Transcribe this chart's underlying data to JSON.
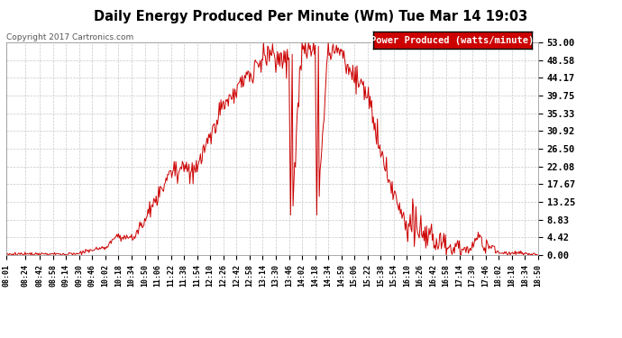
{
  "title": "Daily Energy Produced Per Minute (Wm) Tue Mar 14 19:03",
  "copyright": "Copyright 2017 Cartronics.com",
  "legend_label": "Power Produced (watts/minute)",
  "legend_bg": "#cc0000",
  "legend_fg": "#ffffff",
  "line_color": "#cc0000",
  "bg_color": "#ffffff",
  "grid_color": "#c8c8c8",
  "title_color": "#000000",
  "ymax": 53.0,
  "ymin": 0.0,
  "yticks": [
    0.0,
    4.42,
    8.83,
    13.25,
    17.67,
    22.08,
    26.5,
    30.92,
    35.33,
    39.75,
    44.17,
    48.58,
    53.0
  ],
  "xtick_labels": [
    "08:01",
    "08:24",
    "08:42",
    "08:58",
    "09:14",
    "09:30",
    "09:46",
    "10:02",
    "10:18",
    "10:34",
    "10:50",
    "11:06",
    "11:22",
    "11:38",
    "11:54",
    "12:10",
    "12:26",
    "12:42",
    "12:58",
    "13:14",
    "13:30",
    "13:46",
    "14:02",
    "14:18",
    "14:34",
    "14:50",
    "15:06",
    "15:22",
    "15:38",
    "15:54",
    "16:10",
    "16:26",
    "16:42",
    "16:58",
    "17:14",
    "17:30",
    "17:46",
    "18:02",
    "18:18",
    "18:34",
    "18:50"
  ]
}
